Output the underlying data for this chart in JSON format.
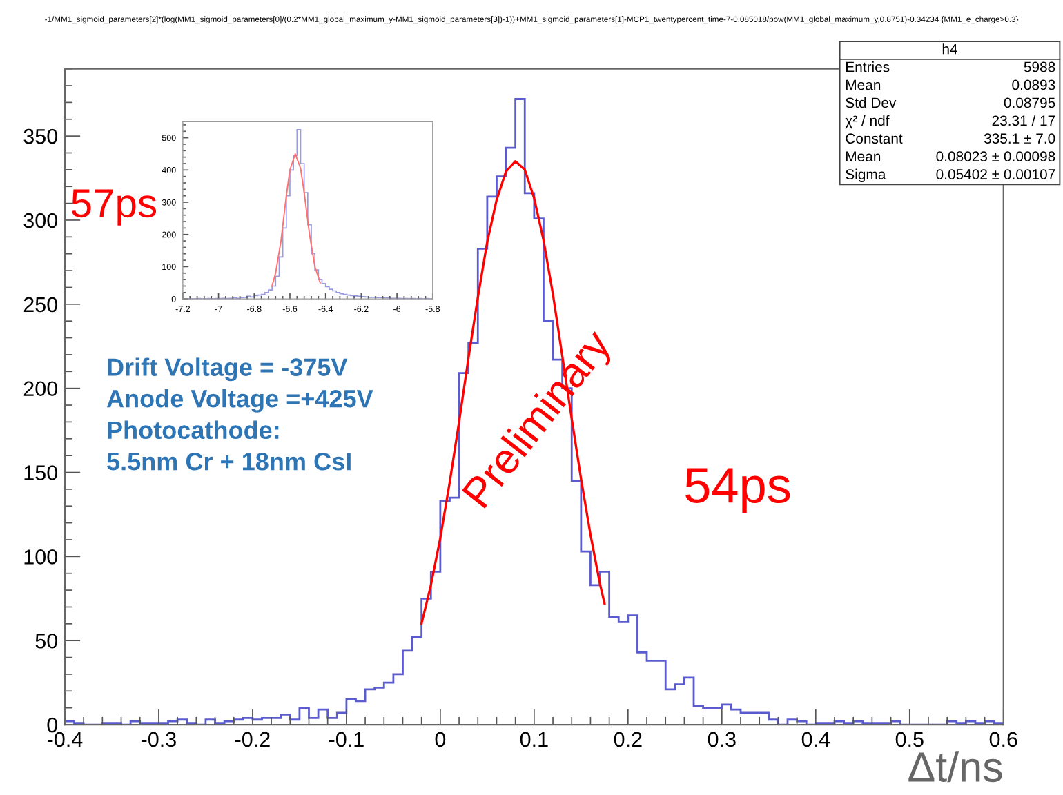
{
  "chart_data": [
    {
      "type": "histogram",
      "title": "-1/MM1_sigmoid_parameters[2]*(log(MM1_sigmoid_parameters[0]/(0.2*MM1_global_maximum_y-MM1_sigmoid_parameters[3])-1))+MM1_sigmoid_parameters[1]-MCP1_twentypercent_time-7-0.085018/pow(MM1_global_maximum_y,0.8751)-0.34234 {MM1_e_charge>0.3}",
      "xlabel": "Δt/ns",
      "annotations": [
        "57ps",
        "54ps",
        "Drift Voltage = -375V\nAnode Voltage =+425V\nPhotocathode:\n5.5nm Cr + 18nm CsI",
        "Preliminary",
        "h4",
        "Entries",
        "5988",
        "Mean",
        "0.0893",
        "Std Dev",
        "0.08795",
        "χ² / ndf",
        "23.31 / 17",
        "Constant",
        "335.1 ± 7.0",
        "Mean",
        "0.08023 ± 0.00098",
        "Sigma",
        "0.05402 ± 0.00107"
      ],
      "bins": [
        -0.4,
        -0.39,
        -0.38,
        -0.37,
        -0.36,
        -0.35,
        -0.34,
        -0.33,
        -0.32,
        -0.31,
        -0.3,
        -0.29,
        -0.28,
        -0.27,
        -0.26,
        -0.25,
        -0.24,
        -0.23,
        -0.22,
        -0.21,
        -0.2,
        -0.19,
        -0.18,
        -0.17,
        -0.16,
        -0.15,
        -0.14,
        -0.13,
        -0.12,
        -0.11,
        -0.1,
        -0.09,
        -0.08,
        -0.07,
        -0.06,
        -0.05,
        -0.04,
        -0.03,
        -0.02,
        -0.01,
        0,
        0.01,
        0.02,
        0.03,
        0.04,
        0.05,
        0.06,
        0.07,
        0.08,
        0.09,
        0.1,
        0.11,
        0.12,
        0.13,
        0.14,
        0.15,
        0.16,
        0.17,
        0.18,
        0.19,
        0.2,
        0.21,
        0.22,
        0.23,
        0.24,
        0.25,
        0.26,
        0.27,
        0.28,
        0.29,
        0.3,
        0.31,
        0.32,
        0.33,
        0.34,
        0.35,
        0.36,
        0.37,
        0.38,
        0.39,
        0.4,
        0.41,
        0.42,
        0.43,
        0.44,
        0.45,
        0.46,
        0.47,
        0.48,
        0.49,
        0.5,
        0.51,
        0.52,
        0.53,
        0.54,
        0.55,
        0.56,
        0.57,
        0.58,
        0.59,
        0.6
      ],
      "series": [
        {
          "type": "histogram",
          "color": "#5b5bd0",
          "values": [
            2,
            1,
            0,
            0,
            1,
            1,
            0,
            2,
            1,
            1,
            1,
            2,
            3,
            1,
            0,
            3,
            1,
            2,
            3,
            4,
            3,
            4,
            4,
            6,
            3,
            10,
            4,
            9,
            4,
            7,
            15,
            14,
            21,
            22,
            25,
            30,
            44,
            52,
            75,
            91,
            133,
            135,
            209,
            227,
            283,
            314,
            326,
            343,
            372,
            316,
            301,
            240,
            217,
            200,
            145,
            103,
            83,
            91,
            64,
            61,
            65,
            43,
            38,
            38,
            21,
            24,
            28,
            11,
            10,
            10,
            12,
            9,
            7,
            7,
            7,
            3,
            0,
            3,
            2,
            0,
            1,
            1,
            2,
            1,
            2,
            1,
            1,
            1,
            2,
            0,
            0,
            0,
            0,
            0,
            2,
            1,
            2,
            1,
            2,
            1
          ]
        },
        {
          "type": "line",
          "color": "#ff0000",
          "x": [
            -0.02,
            -0.01,
            0,
            0.01,
            0.02,
            0.03,
            0.04,
            0.05,
            0.06,
            0.07,
            0.08,
            0.09,
            0.1,
            0.11,
            0.12,
            0.13,
            0.14,
            0.15,
            0.16,
            0.17,
            0.175
          ],
          "values": [
            60,
            83,
            111,
            144,
            180,
            218,
            254,
            287,
            312,
            329,
            335,
            330,
            313,
            288,
            256,
            219,
            182,
            146,
            113,
            84,
            72
          ]
        }
      ],
      "xlim": [
        -0.4,
        0.6
      ],
      "ylim": [
        0,
        390
      ],
      "xticks": [
        -0.4,
        -0.3,
        -0.2,
        -0.1,
        0,
        0.1,
        0.2,
        0.3,
        0.4,
        0.5,
        0.6
      ],
      "yticks": [
        0,
        50,
        100,
        150,
        200,
        250,
        300,
        350
      ]
    },
    {
      "type": "histogram",
      "bins": [
        -7.2,
        -7.18,
        -7.16,
        -7.14,
        -7.12,
        -7.1,
        -7.08,
        -7.06,
        -7.04,
        -7.02,
        -7.0,
        -6.98,
        -6.96,
        -6.94,
        -6.92,
        -6.9,
        -6.88,
        -6.86,
        -6.84,
        -6.82,
        -6.8,
        -6.78,
        -6.76,
        -6.74,
        -6.72,
        -6.7,
        -6.68,
        -6.66,
        -6.64,
        -6.62,
        -6.6,
        -6.58,
        -6.56,
        -6.54,
        -6.52,
        -6.5,
        -6.48,
        -6.46,
        -6.44,
        -6.42,
        -6.4,
        -6.38,
        -6.36,
        -6.34,
        -6.32,
        -6.3,
        -6.28,
        -6.26,
        -6.24,
        -6.22,
        -6.2,
        -6.18,
        -6.16,
        -6.14,
        -6.12,
        -6.1,
        -6.08,
        -6.06,
        -6.04,
        -6.02,
        -6.0,
        -5.98,
        -5.96,
        -5.94,
        -5.92,
        -5.9,
        -5.88,
        -5.86,
        -5.84,
        -5.82,
        -5.8
      ],
      "series": [
        {
          "type": "histogram",
          "color": "#9a9ae0",
          "values": [
            0,
            0,
            0,
            0,
            1,
            0,
            0,
            1,
            0,
            1,
            1,
            2,
            1,
            2,
            3,
            2,
            4,
            5,
            8,
            6,
            10,
            12,
            14,
            20,
            28,
            40,
            70,
            130,
            220,
            320,
            400,
            445,
            525,
            420,
            330,
            230,
            140,
            90,
            60,
            48,
            38,
            30,
            25,
            20,
            16,
            14,
            12,
            10,
            9,
            8,
            7,
            6,
            5,
            5,
            4,
            4,
            3,
            3,
            2,
            2,
            2,
            1,
            1,
            1,
            1,
            0,
            1,
            0,
            1,
            0
          ]
        },
        {
          "type": "line",
          "color": "#ff7070",
          "x": [
            -6.7,
            -6.68,
            -6.65,
            -6.62,
            -6.6,
            -6.57,
            -6.54,
            -6.52,
            -6.49,
            -6.46,
            -6.43
          ],
          "values": [
            40,
            80,
            180,
            320,
            400,
            450,
            405,
            330,
            200,
            100,
            50
          ]
        }
      ],
      "xlim": [
        -7.2,
        -5.8
      ],
      "ylim": [
        0,
        550
      ],
      "xticks": [
        -7.2,
        -7,
        -6.8,
        -6.6,
        -6.4,
        -6.2,
        -6,
        -5.8
      ],
      "yticks": [
        0,
        100,
        200,
        300,
        400,
        500
      ]
    }
  ]
}
